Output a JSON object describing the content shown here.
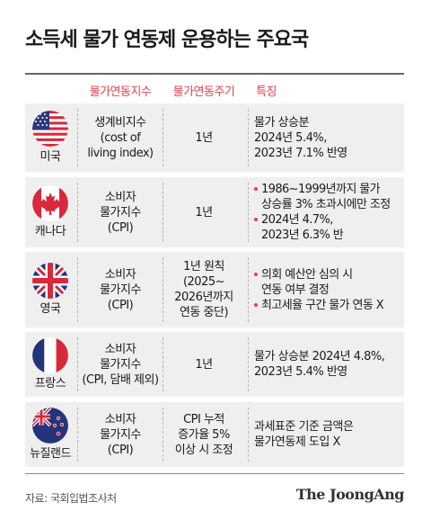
{
  "title": "소득세 물가 연동제 운용하는 주요국",
  "headers": [
    "물가연동지수",
    "물가연동주기",
    "특징"
  ],
  "rows": [
    {
      "country": "미국",
      "flag_icon": "us-flag-icon",
      "index": "생계비지수\n(cost of\nliving index)",
      "cycle": "1년",
      "features": [
        "물가 상승분\n2024년 5.4%,\n2023년 7.1% 반영"
      ]
    },
    {
      "country": "캐나다",
      "flag_icon": "canada-flag-icon",
      "index": "소비자\n물가지수\n(CPI)",
      "cycle": "1년",
      "features": [
        "1986~1999년까지 물가\n상승률 3% 초과시에만 조정",
        "2024년 4.7%,\n2023년 6.3% 반"
      ]
    },
    {
      "country": "영국",
      "flag_icon": "uk-flag-icon",
      "index": "소비자\n물가지수\n(CPI)",
      "cycle": "1년 원칙\n(2025~\n2026년까지\n연동 중단)",
      "features": [
        "의회 예산안 심의 시\n연동 여부 결정",
        "최고세율 구간 물가 연동 X"
      ]
    },
    {
      "country": "프랑스",
      "flag_icon": "france-flag-icon",
      "index": "소비자\n물가지수\n(CPI, 담배 제외)",
      "cycle": "1년",
      "features": [
        "물가 상승분 2024년 4.8%,\n2023년 5.4% 반영"
      ]
    },
    {
      "country": "뉴질랜드",
      "flag_icon": "new-zealand-flag-icon",
      "index": "소비자\n물가지수\n(CPI)",
      "cycle": "CPI 누적\n증가율 5%\n이상 시 조정",
      "features": [
        "과세표준 기준 금액은\n물가연동제 도입 X"
      ]
    }
  ],
  "source": "자료: 국회입법조사처",
  "logo": "The JoongAng",
  "colors": {
    "accent": "#e0414b",
    "row_bg": "#efefef",
    "rule": "#666666"
  }
}
